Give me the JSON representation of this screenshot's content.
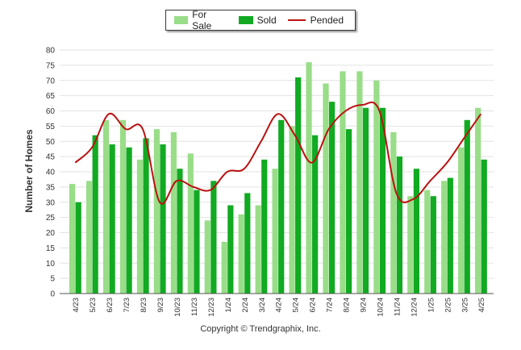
{
  "chart_data": {
    "type": "bar",
    "title": "",
    "xlabel": "",
    "ylabel": "Number of Homes",
    "ylim": [
      0,
      80
    ],
    "yticks": [
      0,
      5,
      10,
      15,
      20,
      25,
      30,
      35,
      40,
      45,
      50,
      55,
      60,
      65,
      70,
      75,
      80
    ],
    "grid": true,
    "legend_position": "top-center",
    "categories": [
      "4/23",
      "5/23",
      "6/23",
      "7/23",
      "8/23",
      "9/23",
      "10/23",
      "11/23",
      "12/23",
      "1/24",
      "2/24",
      "3/24",
      "4/24",
      "5/24",
      "6/24",
      "7/24",
      "8/24",
      "9/24",
      "10/24",
      "11/24",
      "12/24",
      "1/25",
      "2/25",
      "3/25",
      "4/25"
    ],
    "series": [
      {
        "name": "For Sale",
        "kind": "bar",
        "color": "#99dd88",
        "values": [
          36,
          37,
          57,
          57,
          44,
          54,
          53,
          46,
          24,
          17,
          26,
          29,
          41,
          55,
          76,
          69,
          73,
          73,
          70,
          53,
          32,
          34,
          37,
          48,
          61
        ]
      },
      {
        "name": "Sold",
        "kind": "bar",
        "color": "#11aa22",
        "values": [
          30,
          52,
          49,
          48,
          51,
          49,
          41,
          34,
          37,
          29,
          33,
          44,
          57,
          71,
          52,
          63,
          54,
          61,
          61,
          45,
          41,
          32,
          38,
          57,
          44
        ]
      },
      {
        "name": "Pended",
        "kind": "line",
        "color": "#bb1111",
        "values": [
          43,
          48,
          59,
          54,
          54,
          30,
          37,
          35,
          34,
          40,
          41,
          50,
          59,
          52,
          43,
          54,
          60,
          62,
          60,
          33,
          31,
          37,
          43,
          51,
          59
        ]
      }
    ]
  },
  "footer": {
    "copyright": "Copyright © Trendgraphix, Inc."
  }
}
